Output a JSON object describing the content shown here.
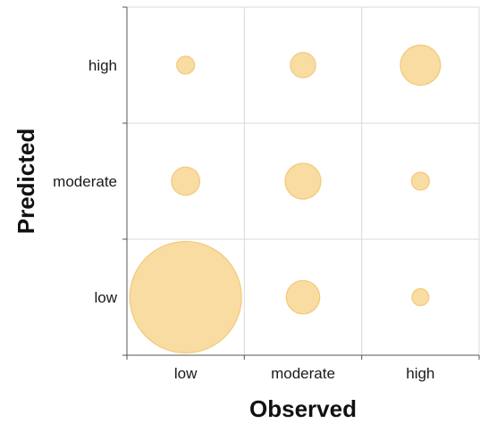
{
  "chart_data": {
    "type": "scatter",
    "title": "",
    "xlabel": "Observed",
    "ylabel": "Predicted",
    "x_categories": [
      "low",
      "moderate",
      "high"
    ],
    "y_categories": [
      "low",
      "moderate",
      "high"
    ],
    "grid": true,
    "points": [
      {
        "x": "low",
        "y": "high",
        "size": 1
      },
      {
        "x": "moderate",
        "y": "high",
        "size": 2
      },
      {
        "x": "high",
        "y": "high",
        "size": 5
      },
      {
        "x": "low",
        "y": "moderate",
        "size": 2.5
      },
      {
        "x": "moderate",
        "y": "moderate",
        "size": 4
      },
      {
        "x": "high",
        "y": "moderate",
        "size": 1
      },
      {
        "x": "low",
        "y": "low",
        "size": 39
      },
      {
        "x": "moderate",
        "y": "low",
        "size": 3.5
      },
      {
        "x": "high",
        "y": "low",
        "size": 0.9
      }
    ],
    "colors": {
      "fill": "#f9dca2",
      "stroke": "#f3c979",
      "grid": "#d9d9d9",
      "axis": "#555555"
    }
  }
}
